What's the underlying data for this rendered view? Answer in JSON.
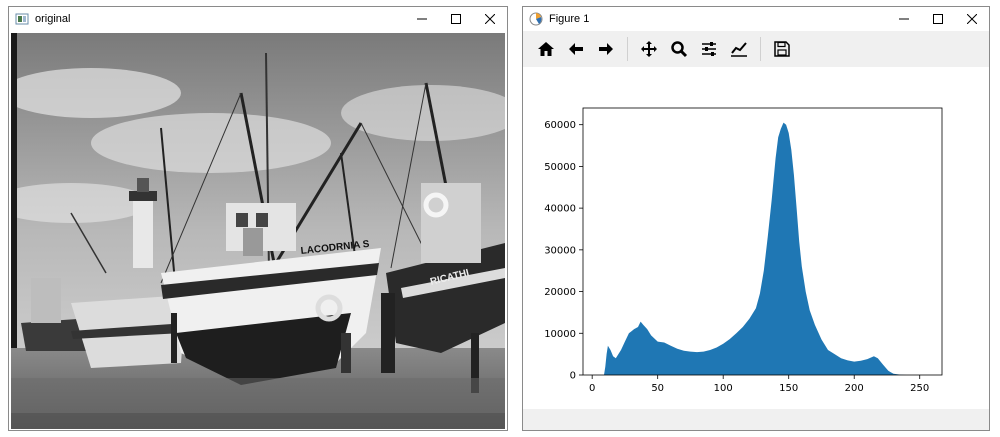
{
  "left_window": {
    "title": "original",
    "photo": {
      "subject": "boats",
      "hull_letters_1": "LACODRNIA S",
      "hull_letters_2": "RICATHI"
    }
  },
  "right_window": {
    "title": "Figure 1",
    "toolbar": [
      {
        "icon": "home-icon"
      },
      {
        "icon": "back-arrow-icon"
      },
      {
        "icon": "forward-arrow-icon"
      },
      {
        "icon": "pan-icon"
      },
      {
        "icon": "zoom-icon"
      },
      {
        "icon": "configure-subplots-icon"
      },
      {
        "icon": "edit-axis-icon"
      },
      {
        "icon": "save-icon"
      }
    ]
  },
  "chart_data": {
    "type": "area",
    "title": "",
    "xlabel": "",
    "ylabel": "",
    "xlim": [
      -7,
      267
    ],
    "ylim": [
      0,
      64000
    ],
    "xticks": [
      0,
      50,
      100,
      150,
      200,
      250
    ],
    "yticks": [
      0,
      10000,
      20000,
      30000,
      40000,
      50000,
      60000
    ],
    "color": "#1f77b4",
    "grid": false,
    "x": [
      0,
      9,
      10,
      11,
      12,
      14,
      16,
      18,
      20,
      22,
      25,
      28,
      30,
      32,
      35,
      37,
      39,
      42,
      45,
      50,
      55,
      60,
      65,
      70,
      75,
      80,
      85,
      90,
      95,
      100,
      105,
      110,
      115,
      120,
      125,
      128,
      131,
      134,
      137,
      140,
      142,
      144,
      146,
      148,
      150,
      152,
      154,
      156,
      158,
      160,
      163,
      166,
      170,
      175,
      180,
      185,
      190,
      195,
      200,
      205,
      210,
      215,
      218,
      222,
      226,
      230,
      235,
      240,
      245,
      255
    ],
    "y": [
      0,
      0,
      2000,
      5000,
      7000,
      6000,
      4500,
      4000,
      5000,
      6000,
      8000,
      10000,
      10500,
      11000,
      11500,
      12800,
      12000,
      11000,
      9500,
      8000,
      7800,
      7000,
      6300,
      5800,
      5600,
      5500,
      5600,
      6000,
      6600,
      7500,
      8600,
      10000,
      11500,
      13500,
      16000,
      19500,
      25000,
      33000,
      42000,
      52000,
      57000,
      59000,
      60500,
      60000,
      58000,
      54000,
      48000,
      40000,
      32000,
      26000,
      20000,
      15500,
      12000,
      8500,
      6000,
      5000,
      4000,
      3500,
      3200,
      3400,
      3800,
      4500,
      4000,
      2500,
      1000,
      300,
      100,
      0,
      0,
      0
    ]
  }
}
